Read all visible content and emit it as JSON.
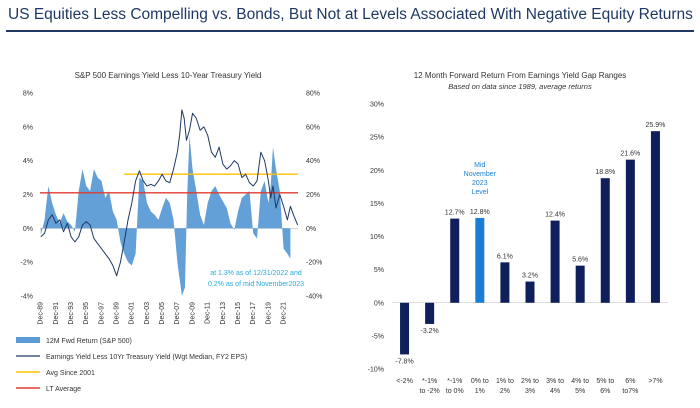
{
  "page": {
    "title": "US Equities Less Compelling vs. Bonds, But Not at Levels Associated With Negative Equity Returns"
  },
  "chart_data": [
    {
      "type": "line",
      "title": "S&P 500 Earnings Yield Less 10-Year Treasury Yield",
      "left_axis": {
        "ylim": [
          -4,
          8
        ],
        "ticks": [
          "8%",
          "6%",
          "4%",
          "2%",
          "0%",
          "-2%",
          "-4%"
        ]
      },
      "right_axis": {
        "ylim": [
          -40,
          80
        ],
        "ticks": [
          "80%",
          "60%",
          "40%",
          "20%",
          "0%",
          "-20%",
          "-40%"
        ]
      },
      "x_ticks": [
        "Dec-89",
        "Dec-91",
        "Dec-93",
        "Dec-95",
        "Dec-97",
        "Dec-99",
        "Dec-01",
        "Dec-03",
        "Dec-05",
        "Dec-07",
        "Dec-09",
        "Dec-11",
        "Dec-13",
        "Dec-15",
        "Dec-17",
        "Dec-19",
        "Dec-21"
      ],
      "x_range": [
        1989.9,
        2023.9
      ],
      "series": [
        {
          "name": "12M Fwd Return (S&P 500)",
          "kind": "area",
          "axis": "right",
          "color": "#5b9bd5",
          "x": [
            1990.0,
            1990.5,
            1991.0,
            1991.5,
            1992.0,
            1992.5,
            1993.0,
            1993.5,
            1994.0,
            1994.5,
            1995.0,
            1995.5,
            1996.0,
            1996.5,
            1997.0,
            1997.5,
            1998.0,
            1998.5,
            1999.0,
            1999.5,
            2000.0,
            2000.5,
            2001.0,
            2001.5,
            2002.0,
            2002.5,
            2003.0,
            2003.5,
            2004.0,
            2004.5,
            2005.0,
            2005.5,
            2006.0,
            2006.5,
            2007.0,
            2007.5,
            2008.0,
            2008.3,
            2008.6,
            2009.0,
            2009.3,
            2009.6,
            2010.0,
            2010.5,
            2011.0,
            2011.5,
            2012.0,
            2012.5,
            2013.0,
            2013.5,
            2014.0,
            2014.5,
            2015.0,
            2015.5,
            2016.0,
            2016.5,
            2017.0,
            2017.5,
            2018.0,
            2018.5,
            2019.0,
            2019.5,
            2020.0,
            2020.3,
            2020.6,
            2021.0,
            2021.5,
            2022.0,
            2022.5,
            2022.9
          ],
          "values": [
            -4,
            5,
            25,
            15,
            8,
            3,
            9,
            4,
            2,
            -2,
            22,
            35,
            25,
            22,
            35,
            30,
            28,
            18,
            22,
            10,
            5,
            -8,
            -15,
            -20,
            -22,
            -15,
            30,
            28,
            15,
            10,
            8,
            5,
            12,
            18,
            15,
            5,
            -20,
            -30,
            -40,
            -35,
            20,
            55,
            35,
            22,
            8,
            2,
            15,
            22,
            25,
            20,
            16,
            12,
            3,
            -1,
            10,
            18,
            20,
            22,
            -3,
            -6,
            22,
            28,
            15,
            25,
            48,
            35,
            22,
            -12,
            -15,
            -18
          ]
        },
        {
          "name": "Earnings Yield Less 10Yr Treasury Yield  (Wgt Median, FY2 EPS)",
          "kind": "line",
          "axis": "left",
          "color": "#1f3864",
          "x": [
            1990.0,
            1990.5,
            1991.0,
            1991.5,
            1992.0,
            1992.5,
            1993.0,
            1993.5,
            1994.0,
            1994.5,
            1995.0,
            1995.5,
            1996.0,
            1996.5,
            1997.0,
            1997.5,
            1998.0,
            1998.5,
            1999.0,
            1999.5,
            2000.0,
            2000.5,
            2001.0,
            2001.5,
            2002.0,
            2002.5,
            2003.0,
            2003.5,
            2004.0,
            2004.5,
            2005.0,
            2005.5,
            2006.0,
            2006.5,
            2007.0,
            2007.5,
            2008.0,
            2008.3,
            2008.6,
            2008.9,
            2009.2,
            2009.6,
            2010.0,
            2010.5,
            2011.0,
            2011.5,
            2012.0,
            2012.5,
            2013.0,
            2013.5,
            2014.0,
            2014.5,
            2015.0,
            2015.5,
            2016.0,
            2016.5,
            2017.0,
            2017.5,
            2018.0,
            2018.5,
            2019.0,
            2019.5,
            2020.0,
            2020.3,
            2020.6,
            2021.0,
            2021.5,
            2022.0,
            2022.5,
            2022.9,
            2023.3,
            2023.85
          ],
          "values": [
            -0.5,
            -0.3,
            0.5,
            0.8,
            0.3,
            0.5,
            -0.2,
            0.3,
            -0.5,
            -0.8,
            -0.5,
            0.2,
            0.4,
            0.2,
            -0.6,
            -0.9,
            -1.2,
            -1.5,
            -1.8,
            -2.2,
            -2.8,
            -2.0,
            -0.8,
            0.5,
            1.5,
            2.8,
            3.4,
            2.8,
            2.5,
            2.6,
            2.5,
            2.8,
            3.2,
            2.8,
            2.7,
            3.5,
            4.5,
            5.5,
            7.0,
            6.5,
            5.2,
            5.8,
            6.8,
            6.5,
            5.8,
            6.0,
            5.5,
            4.5,
            4.2,
            4.8,
            3.8,
            3.5,
            3.7,
            4.0,
            3.8,
            3.0,
            3.2,
            2.7,
            2.5,
            2.8,
            4.5,
            4.0,
            2.8,
            1.8,
            2.5,
            1.2,
            2.0,
            1.3,
            0.5,
            1.3,
            0.8,
            0.2
          ]
        },
        {
          "name": "Avg Since 2001",
          "kind": "hline",
          "axis": "left",
          "color": "#ffc000",
          "value": 3.2,
          "x_start": 2001.0
        },
        {
          "name": "LT Average",
          "kind": "hline",
          "axis": "left",
          "color": "#e03c31",
          "value": 2.1
        }
      ],
      "annotation": {
        "line1": "at 1.3% as of 12/31/2022 and",
        "line2": "0.2% as of mid November2023",
        "color": "#29a8e0"
      }
    },
    {
      "type": "bar",
      "title": "12 Month Forward Return From Earnings Yield Gap Ranges",
      "subtitle": "Based on data since 1989, average returns",
      "ylim": [
        -10,
        30
      ],
      "y_ticks": [
        "30%",
        "25%",
        "20%",
        "15%",
        "10%",
        "5%",
        "0%",
        "-5%",
        "-10%"
      ],
      "categories": [
        {
          "line1": "<-2%",
          "line2": ""
        },
        {
          "line1": "*-1%",
          "line2": "to -2%"
        },
        {
          "line1": "*-1%",
          "line2": "to 0%"
        },
        {
          "line1": "0% to",
          "line2": "1%"
        },
        {
          "line1": "1% to",
          "line2": "2%"
        },
        {
          "line1": "2% to",
          "line2": "3%"
        },
        {
          "line1": "3% to",
          "line2": "4%"
        },
        {
          "line1": "4% to",
          "line2": "5%"
        },
        {
          "line1": "5% to",
          "line2": "6%"
        },
        {
          "line1": "6%",
          "line2": "to7%"
        },
        {
          "line1": ">7%",
          "line2": ""
        }
      ],
      "values": [
        -7.8,
        -3.2,
        12.7,
        12.8,
        6.1,
        3.2,
        12.4,
        5.6,
        18.8,
        21.6,
        25.9
      ],
      "value_labels": [
        "-7.8%",
        "-3.2%",
        "12.7%",
        "12.8%",
        "6.1%",
        "3.2%",
        "12.4%",
        "5.6%",
        "18.8%",
        "21.6%",
        "25.9%"
      ],
      "highlight_index": 3,
      "colors": {
        "bar": "#0e1f5b",
        "highlight": "#1a7fd4"
      },
      "highlight_note": [
        "Mid",
        "November",
        "2023",
        "Level"
      ]
    }
  ]
}
